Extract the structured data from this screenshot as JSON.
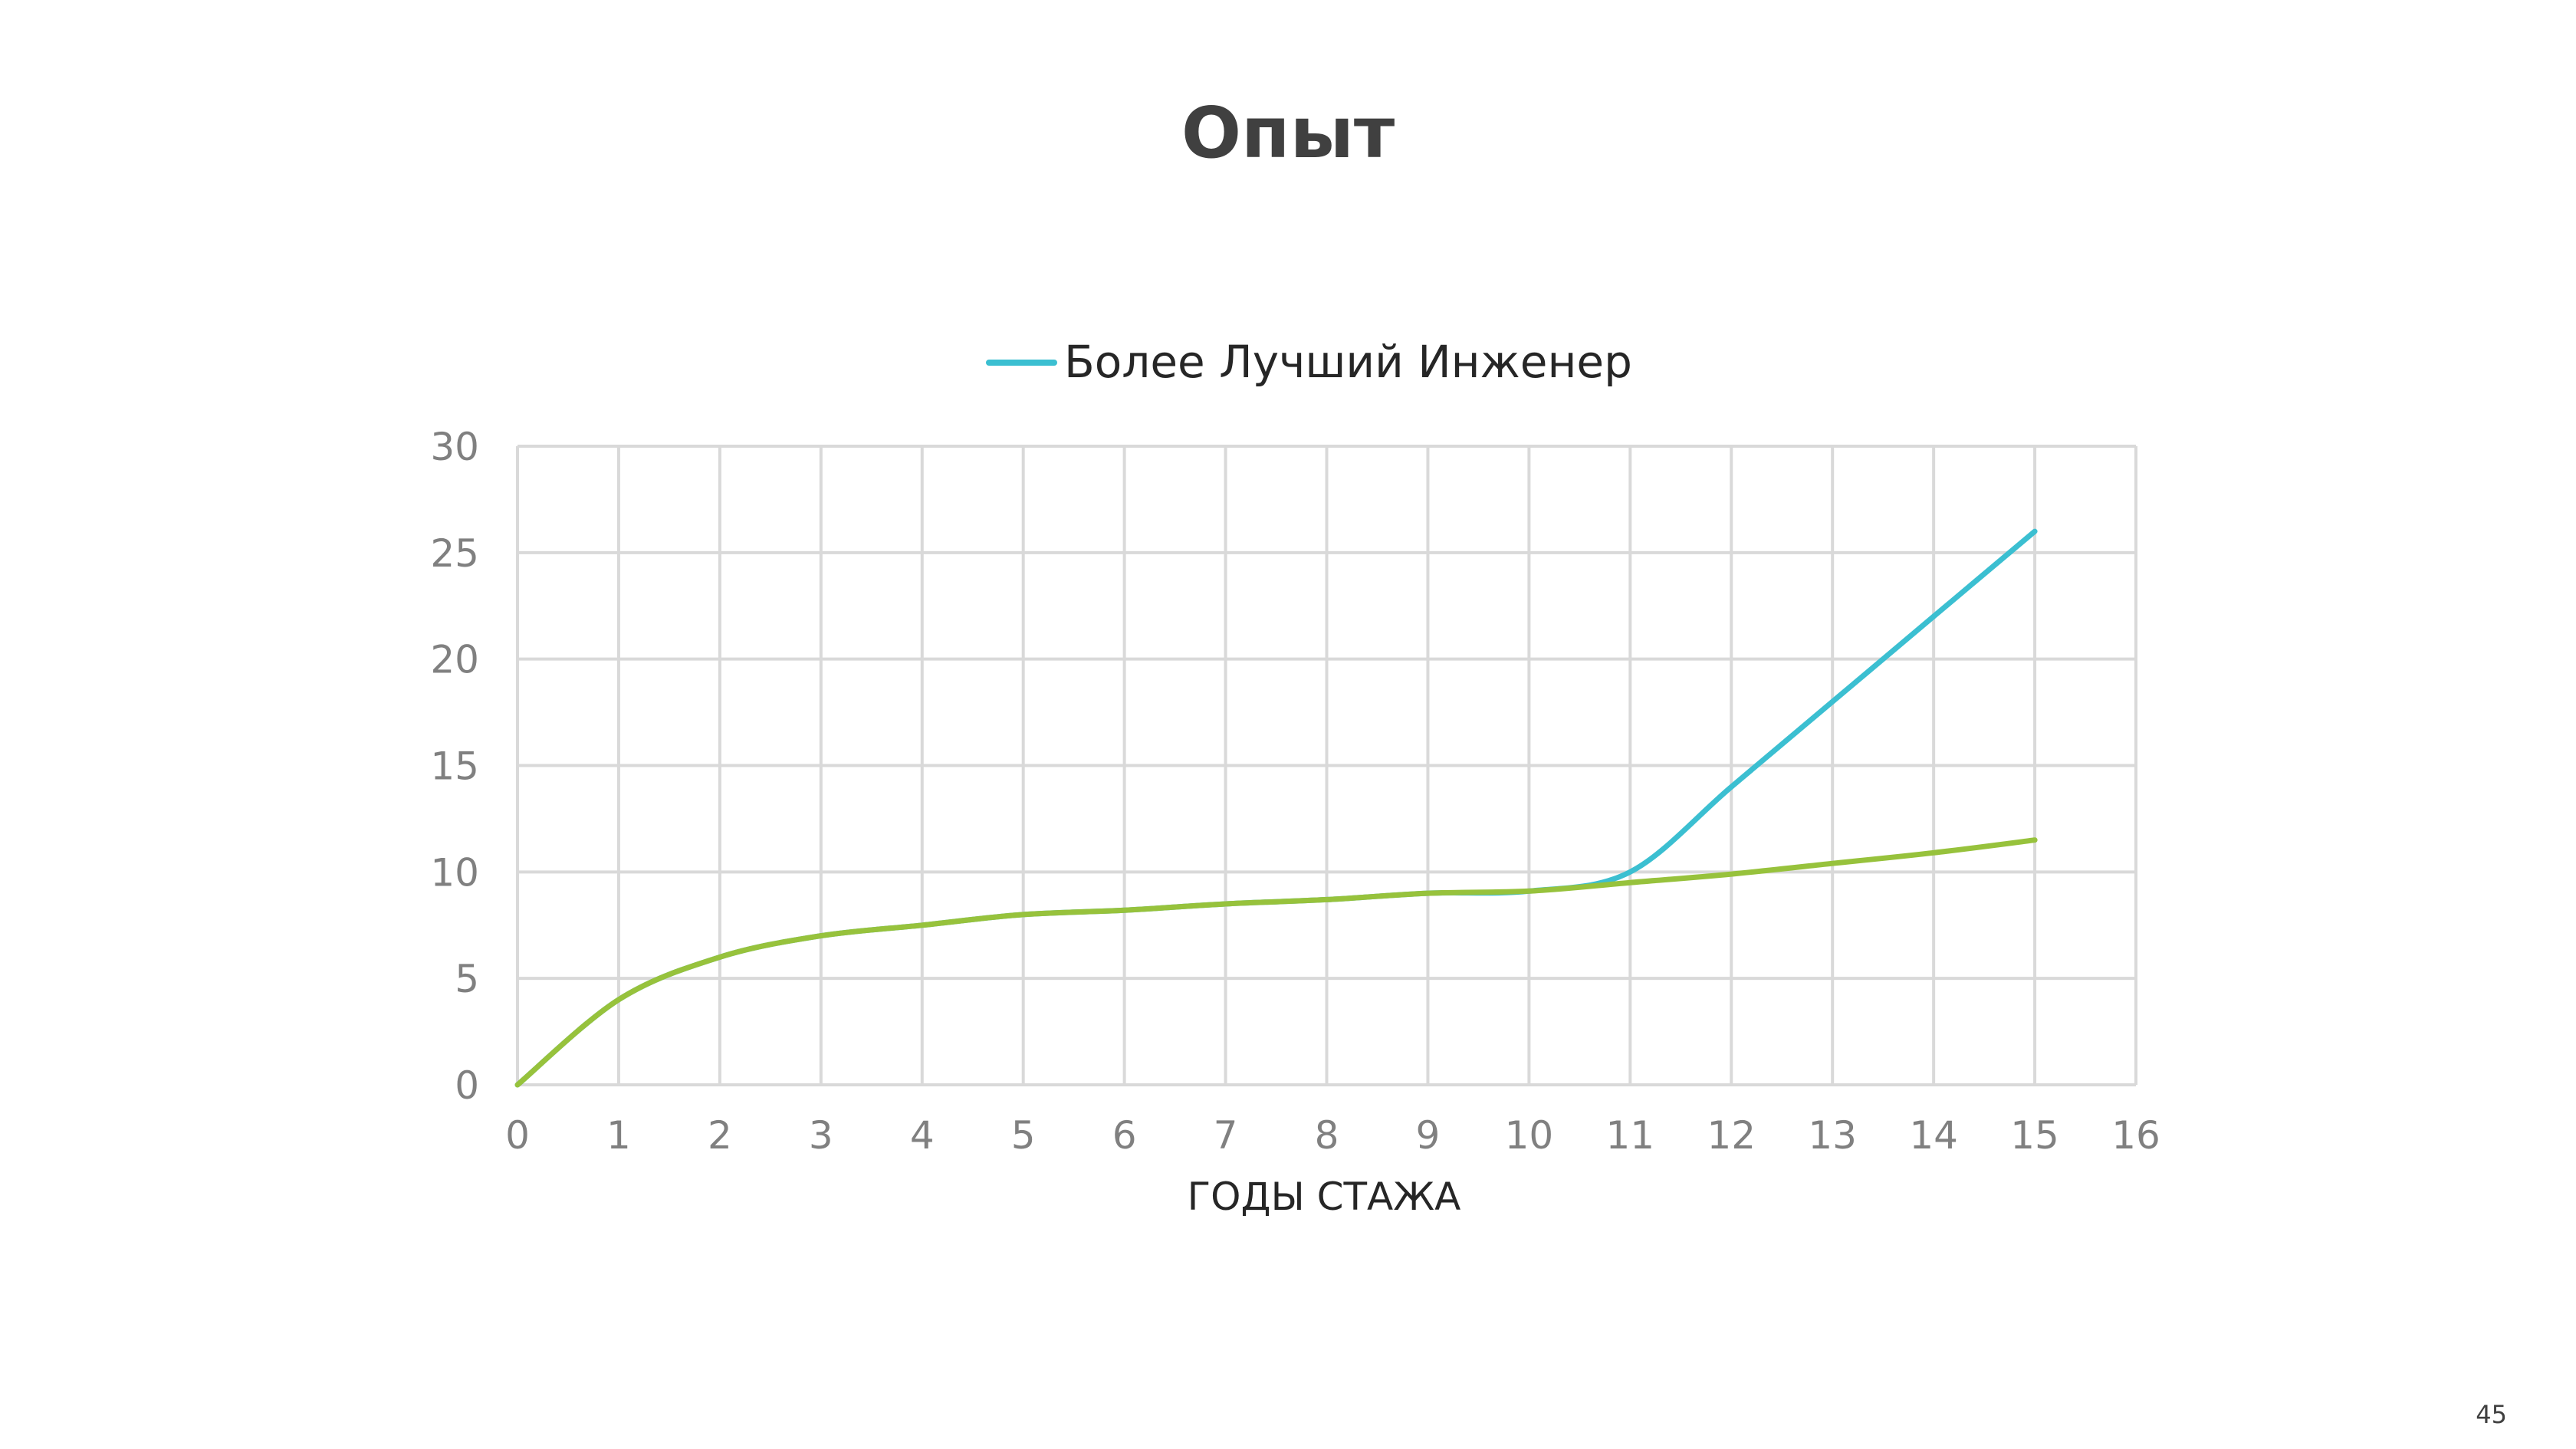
{
  "slide": {
    "title": "Опыт",
    "page_number": "45"
  },
  "chart_data": {
    "type": "line",
    "title": "",
    "xlabel": "ГОДЫ СТАЖА",
    "ylabel": "",
    "xlim": [
      0,
      16
    ],
    "ylim": [
      0,
      30
    ],
    "x_ticks": [
      "0",
      "1",
      "2",
      "3",
      "4",
      "5",
      "6",
      "7",
      "8",
      "9",
      "10",
      "11",
      "12",
      "13",
      "14",
      "15",
      "16"
    ],
    "y_ticks": [
      "0",
      "5",
      "10",
      "15",
      "20",
      "25",
      "30"
    ],
    "grid": true,
    "legend_position": "top",
    "series": [
      {
        "name": "Более Лучший Инженер",
        "color": "#3bbfd1",
        "in_legend": true,
        "x": [
          0,
          1,
          2,
          3,
          4,
          5,
          6,
          7,
          8,
          9,
          10,
          11,
          12,
          13,
          14,
          15
        ],
        "y": [
          0,
          4,
          6,
          7,
          7.5,
          8,
          8.2,
          8.5,
          8.7,
          9,
          9.1,
          10,
          14,
          18,
          22,
          26
        ]
      },
      {
        "color": "#97c23c",
        "in_legend": false,
        "x": [
          0,
          1,
          2,
          3,
          4,
          5,
          6,
          7,
          8,
          9,
          10,
          11,
          12,
          13,
          14,
          15
        ],
        "y": [
          0,
          4,
          6,
          7,
          7.5,
          8,
          8.2,
          8.5,
          8.7,
          9,
          9.1,
          9.5,
          9.9,
          10.4,
          10.9,
          11.5
        ]
      }
    ]
  }
}
